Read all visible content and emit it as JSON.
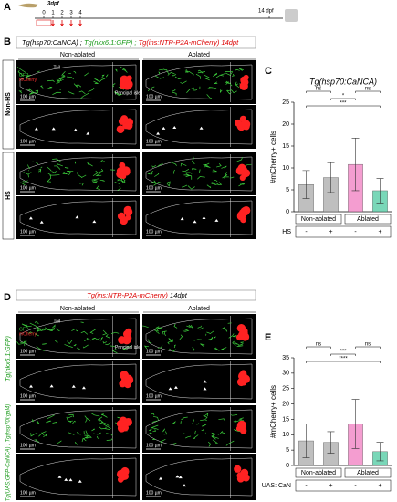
{
  "panel_labels": [
    "A",
    "B",
    "C",
    "D",
    "E"
  ],
  "timeline": {
    "start": "3dpf",
    "days": [
      "0",
      "1",
      "2",
      "3",
      "4"
    ],
    "end": "14 dpf"
  },
  "panel_b": {
    "header": [
      "Tg(hsp70:CaNCA) ;",
      "Tg(nkx6.1:GFP) ;",
      "Tg(ins:NTR-P2A-mCherry) 14dpt"
    ],
    "columns": [
      "Non-ablated",
      "Ablated"
    ],
    "rows": [
      "Non-HS",
      "HS"
    ],
    "tail": "Tail",
    "islet": "Principal islet (PI)",
    "channels": [
      "GFP",
      "mCherry"
    ],
    "scale": "100 µm"
  },
  "panel_d": {
    "header": [
      "Tg(ins:NTR-P2A-mCherry)",
      "14dpt"
    ],
    "columns": [
      "Non-ablated",
      "Ablated"
    ],
    "rows": [
      "Tg(nkx6.1:GFP)",
      "Tg(UAS:GFP-CaNCA) ; Tg(hsp70l:gal4)"
    ],
    "tail": "Tail",
    "islet": "Principal islet",
    "channels": [
      "GFP",
      "mCherry"
    ],
    "scale": "100 µm"
  },
  "chart_data": [
    {
      "type": "bar",
      "title": "Tg(hsp70:CaNCA)",
      "y_label": "#mCherry+ cells",
      "groups": [
        "Non-ablated",
        "Ablated"
      ],
      "factor_label": "HS",
      "categories": [
        "-",
        "+",
        "-",
        "+"
      ],
      "values": [
        6.2,
        7.8,
        10.8,
        4.8
      ],
      "errors": [
        3.2,
        3.4,
        6.0,
        2.8
      ],
      "colors": [
        "#a9a9a9",
        "#a9a9a9",
        "#f07cc0",
        "#4cc9a0"
      ],
      "significance": [
        "ns",
        "ns",
        "*",
        "***"
      ],
      "ylim": [
        0,
        25
      ],
      "yticks": [
        0,
        5,
        10,
        15,
        20,
        25
      ]
    },
    {
      "type": "bar",
      "y_label": "#mCherry+ cells",
      "groups": [
        "Non-ablated",
        "Ablated"
      ],
      "factor_label": "UAS: CaN",
      "categories": [
        "-",
        "+",
        "-",
        "+"
      ],
      "values": [
        8.0,
        7.5,
        13.5,
        4.5
      ],
      "errors": [
        5.5,
        3.5,
        8.0,
        3.0
      ],
      "colors": [
        "#a9a9a9",
        "#a9a9a9",
        "#f07cc0",
        "#4cc9a0"
      ],
      "significance": [
        "ns",
        "ns",
        "***",
        "****"
      ],
      "ylim": [
        0,
        35
      ],
      "yticks": [
        0,
        5,
        10,
        15,
        20,
        25,
        30,
        35
      ]
    }
  ]
}
